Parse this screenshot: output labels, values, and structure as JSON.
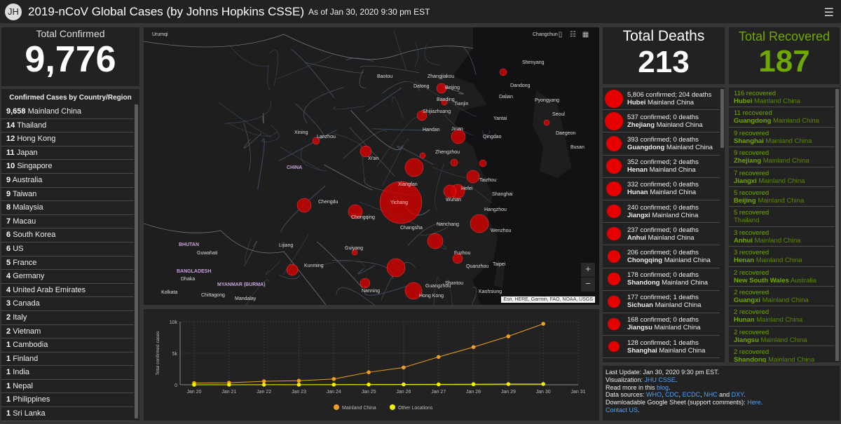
{
  "header": {
    "logo_text": "JH",
    "title": "2019-nCoV Global Cases (by Johns Hopkins CSSE)",
    "as_of": "As of Jan 30, 2020 9:30 pm EST",
    "menu_icon": "☰"
  },
  "confirmed": {
    "label": "Total Confirmed",
    "value": "9,776"
  },
  "deaths": {
    "label": "Total Deaths",
    "value": "213"
  },
  "recovered": {
    "label": "Total Recovered",
    "value": "187"
  },
  "country_list": {
    "heading": "Confirmed Cases by Country/Region",
    "items": [
      {
        "count": "9,658",
        "name": "Mainland China"
      },
      {
        "count": "14",
        "name": "Thailand"
      },
      {
        "count": "12",
        "name": "Hong Kong"
      },
      {
        "count": "11",
        "name": "Japan"
      },
      {
        "count": "10",
        "name": "Singapore"
      },
      {
        "count": "9",
        "name": "Australia"
      },
      {
        "count": "9",
        "name": "Taiwan"
      },
      {
        "count": "8",
        "name": "Malaysia"
      },
      {
        "count": "7",
        "name": "Macau"
      },
      {
        "count": "6",
        "name": "South Korea"
      },
      {
        "count": "6",
        "name": "US"
      },
      {
        "count": "5",
        "name": "France"
      },
      {
        "count": "4",
        "name": "Germany"
      },
      {
        "count": "4",
        "name": "United Arab Emirates"
      },
      {
        "count": "3",
        "name": "Canada"
      },
      {
        "count": "2",
        "name": "Italy"
      },
      {
        "count": "2",
        "name": "Vietnam"
      },
      {
        "count": "1",
        "name": "Cambodia"
      },
      {
        "count": "1",
        "name": "Finland"
      },
      {
        "count": "1",
        "name": "India"
      },
      {
        "count": "1",
        "name": "Nepal"
      },
      {
        "count": "1",
        "name": "Philippines"
      },
      {
        "count": "1",
        "name": "Sri Lanka"
      }
    ]
  },
  "deaths_list": [
    {
      "confirmed": "5,806 confirmed; 204 deaths",
      "province": "Hubei",
      "country": "Mainland China",
      "cases": 5806
    },
    {
      "confirmed": "537 confirmed; 0 deaths",
      "province": "Zhejiang",
      "country": "Mainland China",
      "cases": 537
    },
    {
      "confirmed": "393 confirmed; 0 deaths",
      "province": "Guangdong",
      "country": "Mainland China",
      "cases": 393
    },
    {
      "confirmed": "352 confirmed; 2 deaths",
      "province": "Henan",
      "country": "Mainland China",
      "cases": 352
    },
    {
      "confirmed": "332 confirmed; 0 deaths",
      "province": "Hunan",
      "country": "Mainland China",
      "cases": 332
    },
    {
      "confirmed": "240 confirmed; 0 deaths",
      "province": "Jiangxi",
      "country": "Mainland China",
      "cases": 240
    },
    {
      "confirmed": "237 confirmed; 0 deaths",
      "province": "Anhui",
      "country": "Mainland China",
      "cases": 237
    },
    {
      "confirmed": "206 confirmed; 0 deaths",
      "province": "Chongqing",
      "country": "Mainland China",
      "cases": 206
    },
    {
      "confirmed": "178 confirmed; 0 deaths",
      "province": "Shandong",
      "country": "Mainland China",
      "cases": 178
    },
    {
      "confirmed": "177 confirmed; 1 deaths",
      "province": "Sichuan",
      "country": "Mainland China",
      "cases": 177
    },
    {
      "confirmed": "168 confirmed; 0 deaths",
      "province": "Jiangsu",
      "country": "Mainland China",
      "cases": 168
    },
    {
      "confirmed": "128 confirmed; 1 deaths",
      "province": "Shanghai",
      "country": "Mainland China",
      "cases": 128
    }
  ],
  "recovered_list": [
    {
      "recovered": "116 recovered",
      "province": "Hubei",
      "country": "Mainland China"
    },
    {
      "recovered": "11 recovered",
      "province": "Guangdong",
      "country": "Mainland China"
    },
    {
      "recovered": "9 recovered",
      "province": "Shanghai",
      "country": "Mainland China"
    },
    {
      "recovered": "9 recovered",
      "province": "Zhejiang",
      "country": "Mainland China"
    },
    {
      "recovered": "7 recovered",
      "province": "Jiangxi",
      "country": "Mainland China"
    },
    {
      "recovered": "5 recovered",
      "province": "Beijing",
      "country": "Mainland China"
    },
    {
      "recovered": "5 recovered",
      "province": "",
      "country": "Thailand"
    },
    {
      "recovered": "3 recovered",
      "province": "Anhui",
      "country": "Mainland China"
    },
    {
      "recovered": "3 recovered",
      "province": "Henan",
      "country": "Mainland China"
    },
    {
      "recovered": "2 recovered",
      "province": "New South Wales",
      "country": "Australia"
    },
    {
      "recovered": "2 recovered",
      "province": "Guangxi",
      "country": "Mainland China"
    },
    {
      "recovered": "2 recovered",
      "province": "Hunan",
      "country": "Mainland China"
    },
    {
      "recovered": "2 recovered",
      "province": "Jiangsu",
      "country": "Mainland China"
    },
    {
      "recovered": "2 recovered",
      "province": "Shandong",
      "country": "Mainland China"
    }
  ],
  "map": {
    "labels": [
      "Urumqi",
      "Changchun",
      "Shenyang",
      "Baotou",
      "Datong",
      "Zhangjiakou",
      "Beijing",
      "Tianjin",
      "Baoding",
      "Dalian",
      "Dandong",
      "Pyongyang",
      "Shijiazhuang",
      "Seoul",
      "Yantai",
      "Handan",
      "Jinan",
      "Qingdao",
      "Daegeon",
      "Busan",
      "Xining",
      "Lanzhou",
      "Zhengzhou",
      "Xi'an",
      "CHINA",
      "Taizhou",
      "Xiangfan",
      "Hefei",
      "Shanghai",
      "Chengdu",
      "Yichang",
      "Wuhan",
      "Chongqing",
      "Hangzhou",
      "Changsha",
      "Nanchang",
      "Wenzhou",
      "BHUTAN",
      "Guwahati",
      "Lijiang",
      "Guiyang",
      "Fuzhou",
      "BANGLADESH",
      "Dhaka",
      "Kunming",
      "Quanzhou",
      "Taipei",
      "MYANMAR (BURMA)",
      "Nanning",
      "Guangzhou",
      "Shantou",
      "Kolkata",
      "Chittagong",
      "Mandalay",
      "Hong Kong",
      "Kaohsiung"
    ],
    "attribution": "Esri, HERE, Garmin, FAO, NOAA, USGS",
    "zoom_in": "+",
    "zoom_out": "−"
  },
  "chart_data": {
    "type": "line",
    "categories": [
      "Jan 20",
      "Jan 21",
      "Jan 22",
      "Jan 23",
      "Jan 24",
      "Jan 25",
      "Jan 26",
      "Jan 27",
      "Jan 28",
      "Jan 29",
      "Jan 30",
      "Jan 31"
    ],
    "series": [
      {
        "name": "Mainland China",
        "color": "#f0a020",
        "values": [
          278,
          326,
          547,
          639,
          916,
          1979,
          2737,
          4409,
          5970,
          7678,
          9658,
          null
        ]
      },
      {
        "name": "Other Locations",
        "color": "#f5f000",
        "values": [
          4,
          6,
          8,
          14,
          25,
          40,
          57,
          64,
          87,
          105,
          118,
          null
        ]
      }
    ],
    "ylabel": "Total confirmed cases",
    "yticks": [
      "0",
      "5k",
      "10k"
    ],
    "ylim": [
      0,
      10000
    ]
  },
  "info": {
    "last_update": "Last Update: Jan 30, 2020 9:30 pm EST.",
    "visualization_prefix": "Visualization: ",
    "visualization_link": "JHU CSSE",
    "visualization_suffix": ".",
    "readmore_prefix": "Read more in this ",
    "readmore_link": "blog",
    "readmore_suffix": ".",
    "sources_prefix": "Data sources: ",
    "src_who": "WHO",
    "src_cdc": "CDC",
    "src_ecdc": "ECDC",
    "src_nhc": "NHC",
    "src_and": " and ",
    "src_dxy": "DXY",
    "sources_suffix": ".",
    "sheet_prefix": "Downloadable Google Sheet (support comments): ",
    "sheet_link": "Here",
    "sheet_suffix": ".",
    "contact_link": "Contact US",
    "contact_suffix": "."
  }
}
